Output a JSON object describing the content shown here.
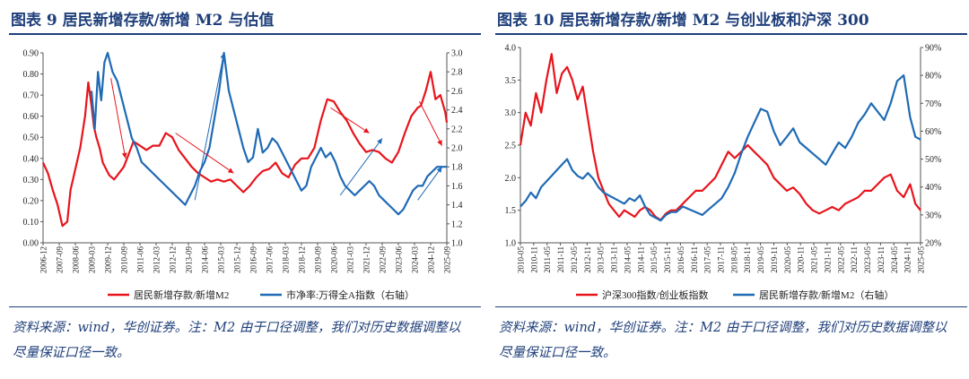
{
  "panels": [
    {
      "title": "图表 9   居民新增存款/新增 M2 与估值",
      "source": "资料来源：wind，华创证券。注：M2 由于口径调整，我们对历史数据调整以尽量保证口径一致。"
    },
    {
      "title": "图表 10   居民新增存款/新增 M2 与创业板和沪深 300",
      "source": "资料来源：wind，华创证券。注：M2 由于口径调整，我们对历史数据调整以尽量保证口径一致。"
    }
  ],
  "chart_data": [
    {
      "type": "line",
      "xlabels": [
        "2006-12",
        "2007-09",
        "2008-06",
        "2009-03",
        "2009-12",
        "2010-09",
        "2011-06",
        "2012-03",
        "2012-12",
        "2013-09",
        "2014-06",
        "2015-03",
        "2015-12",
        "2016-09",
        "2017-06",
        "2018-03",
        "2018-12",
        "2019-09",
        "2020-06",
        "2021-03",
        "2021-12",
        "2022-09",
        "2023-06",
        "2024-03",
        "2024-12",
        "2025-09"
      ],
      "x_range": [
        0,
        25
      ],
      "ylim_left": [
        0,
        0.9
      ],
      "yticks_left": [
        "0.00",
        "0.10",
        "0.20",
        "0.30",
        "0.40",
        "0.50",
        "0.60",
        "0.70",
        "0.80",
        "0.90"
      ],
      "ylim_right": [
        1.0,
        3.0
      ],
      "yticks_right": [
        "1.0",
        "1.2",
        "1.4",
        "1.6",
        "1.8",
        "2.0",
        "2.2",
        "2.4",
        "2.6",
        "2.8",
        "3.0"
      ],
      "series": [
        {
          "name": "居民新增存款/新增M2",
          "axis": "left",
          "color": "#e8141c",
          "x": [
            0,
            0.3,
            0.6,
            0.9,
            1.2,
            1.5,
            1.7,
            2.0,
            2.3,
            2.6,
            2.8,
            3.0,
            3.15,
            3.3,
            3.5,
            3.7,
            3.9,
            4.1,
            4.4,
            4.7,
            5.0,
            5.3,
            5.6,
            6.0,
            6.4,
            6.8,
            7.2,
            7.6,
            8.0,
            8.4,
            8.8,
            9.2,
            9.6,
            10.0,
            10.4,
            10.8,
            11.2,
            11.6,
            12.0,
            12.4,
            12.8,
            13.2,
            13.6,
            14.0,
            14.4,
            14.8,
            15.2,
            15.6,
            16.0,
            16.4,
            16.8,
            17.2,
            17.6,
            18.0,
            18.4,
            18.8,
            19.2,
            19.6,
            20.0,
            20.4,
            20.8,
            21.2,
            21.6,
            22.0,
            22.4,
            22.8,
            23.2,
            23.4,
            23.7,
            24.0,
            24.3,
            24.6,
            24.9,
            25.0
          ],
          "values": [
            0.38,
            0.33,
            0.25,
            0.18,
            0.08,
            0.1,
            0.25,
            0.35,
            0.45,
            0.6,
            0.76,
            0.65,
            0.55,
            0.5,
            0.45,
            0.38,
            0.35,
            0.32,
            0.3,
            0.33,
            0.36,
            0.42,
            0.48,
            0.46,
            0.44,
            0.46,
            0.46,
            0.52,
            0.5,
            0.44,
            0.4,
            0.36,
            0.33,
            0.31,
            0.29,
            0.3,
            0.29,
            0.3,
            0.27,
            0.24,
            0.27,
            0.31,
            0.34,
            0.35,
            0.38,
            0.33,
            0.31,
            0.37,
            0.4,
            0.4,
            0.45,
            0.58,
            0.68,
            0.67,
            0.62,
            0.58,
            0.52,
            0.47,
            0.43,
            0.44,
            0.43,
            0.4,
            0.38,
            0.43,
            0.52,
            0.6,
            0.64,
            0.65,
            0.72,
            0.81,
            0.68,
            0.7,
            0.62,
            0.57
          ]
        },
        {
          "name": "市净率:万得全A指数（右轴）",
          "axis": "right",
          "color": "#1f6ab5",
          "x": [
            3.0,
            3.2,
            3.4,
            3.6,
            3.8,
            4.0,
            4.3,
            4.6,
            4.9,
            5.2,
            5.5,
            5.8,
            6.1,
            6.4,
            6.7,
            7.0,
            7.3,
            7.6,
            7.9,
            8.2,
            8.5,
            8.8,
            9.1,
            9.4,
            9.7,
            10.0,
            10.3,
            10.6,
            10.9,
            11.2,
            11.5,
            11.8,
            12.1,
            12.4,
            12.7,
            13.0,
            13.3,
            13.6,
            13.9,
            14.2,
            14.5,
            14.8,
            15.1,
            15.4,
            15.7,
            16.0,
            16.3,
            16.6,
            16.9,
            17.2,
            17.5,
            17.8,
            18.1,
            18.4,
            18.7,
            19.0,
            19.3,
            19.6,
            19.9,
            20.2,
            20.5,
            20.8,
            21.1,
            21.4,
            21.7,
            22.0,
            22.3,
            22.6,
            22.9,
            23.2,
            23.5,
            23.8,
            24.1,
            24.4,
            24.7,
            25.0
          ],
          "values": [
            2.6,
            2.2,
            2.8,
            2.5,
            2.9,
            3.0,
            2.8,
            2.7,
            2.5,
            2.3,
            2.1,
            2.0,
            1.85,
            1.8,
            1.75,
            1.7,
            1.65,
            1.6,
            1.55,
            1.5,
            1.45,
            1.4,
            1.5,
            1.6,
            1.75,
            1.85,
            2.0,
            2.3,
            2.6,
            3.0,
            2.6,
            2.4,
            2.2,
            2.0,
            1.85,
            1.9,
            2.2,
            1.95,
            2.0,
            2.1,
            2.05,
            1.95,
            1.85,
            1.75,
            1.65,
            1.55,
            1.6,
            1.8,
            1.9,
            2.0,
            1.9,
            1.95,
            1.85,
            1.7,
            1.6,
            1.55,
            1.5,
            1.55,
            1.6,
            1.65,
            1.6,
            1.5,
            1.45,
            1.4,
            1.35,
            1.3,
            1.35,
            1.45,
            1.55,
            1.6,
            1.6,
            1.7,
            1.75,
            1.8,
            1.8,
            1.8
          ]
        }
      ],
      "arrows_red": [
        [
          4.2,
          0.78,
          5.1,
          0.4
        ],
        [
          8.2,
          0.52,
          11.8,
          0.33
        ],
        [
          17.8,
          0.64,
          20.2,
          0.52
        ],
        [
          23.3,
          0.67,
          24.7,
          0.46
        ]
      ],
      "arrows_blue": [
        [
          9.4,
          1.45,
          11.2,
          3.0
        ],
        [
          18.4,
          1.5,
          21.0,
          2.1
        ],
        [
          23.2,
          1.45,
          24.7,
          1.8
        ]
      ]
    },
    {
      "type": "line",
      "xlabels": [
        "2010-05",
        "2010-11",
        "2011-05",
        "2011-11",
        "2012-05",
        "2012-11",
        "2013-05",
        "2013-11",
        "2014-05",
        "2014-11",
        "2015-05",
        "2015-11",
        "2016-05",
        "2016-11",
        "2017-05",
        "2017-11",
        "2018-05",
        "2018-11",
        "2019-05",
        "2019-11",
        "2020-05",
        "2020-11",
        "2021-05",
        "2021-11",
        "2022-05",
        "2022-11",
        "2023-05",
        "2023-11",
        "2024-05",
        "2024-11",
        "2025-05"
      ],
      "x_range": [
        0,
        30.8
      ],
      "ylim_left": [
        1.0,
        4.0
      ],
      "yticks_left": [
        "1.0",
        "1.5",
        "2.0",
        "2.5",
        "3.0",
        "3.5",
        "4.0"
      ],
      "ylim_right": [
        20,
        90
      ],
      "yticks_right": [
        "20%",
        "30%",
        "40%",
        "50%",
        "60%",
        "70%",
        "80%",
        "90%"
      ],
      "series": [
        {
          "name": "沪深300指数/创业板指数",
          "axis": "left",
          "color": "#e8141c",
          "x": [
            0,
            0.4,
            0.8,
            1.2,
            1.6,
            2.0,
            2.4,
            2.8,
            3.2,
            3.6,
            4.0,
            4.4,
            4.8,
            5.2,
            5.6,
            6.0,
            6.4,
            6.8,
            7.2,
            7.6,
            8.0,
            8.4,
            8.8,
            9.2,
            9.6,
            10.0,
            10.4,
            10.8,
            11.2,
            11.6,
            12.0,
            12.5,
            13.0,
            13.5,
            14.0,
            14.5,
            15.0,
            15.5,
            16.0,
            16.5,
            17.0,
            17.5,
            18.0,
            18.5,
            19.0,
            19.5,
            20.0,
            20.5,
            21.0,
            21.5,
            22.0,
            22.5,
            23.0,
            23.5,
            24.0,
            24.5,
            25.0,
            25.5,
            26.0,
            26.5,
            27.0,
            27.5,
            28.0,
            28.5,
            29.0,
            29.5,
            30.0,
            30.4,
            30.8
          ],
          "values": [
            2.5,
            3.0,
            2.8,
            3.3,
            3.0,
            3.5,
            3.9,
            3.3,
            3.6,
            3.7,
            3.5,
            3.2,
            3.4,
            2.9,
            2.4,
            2.0,
            1.8,
            1.6,
            1.5,
            1.4,
            1.5,
            1.45,
            1.4,
            1.5,
            1.55,
            1.5,
            1.4,
            1.35,
            1.45,
            1.5,
            1.5,
            1.6,
            1.7,
            1.8,
            1.8,
            1.9,
            2.0,
            2.2,
            2.4,
            2.3,
            2.4,
            2.5,
            2.4,
            2.3,
            2.2,
            2.0,
            1.9,
            1.8,
            1.85,
            1.75,
            1.6,
            1.5,
            1.45,
            1.5,
            1.55,
            1.5,
            1.6,
            1.65,
            1.7,
            1.8,
            1.8,
            1.9,
            2.0,
            2.05,
            1.8,
            1.7,
            1.9,
            1.6,
            1.5
          ]
        },
        {
          "name": "居民新增存款/新增M2（右轴）",
          "axis": "right",
          "color": "#1f6ab5",
          "x": [
            0,
            0.4,
            0.8,
            1.2,
            1.6,
            2.0,
            2.4,
            2.8,
            3.2,
            3.6,
            4.0,
            4.4,
            4.8,
            5.2,
            5.6,
            6.0,
            6.4,
            6.8,
            7.2,
            7.6,
            8.0,
            8.4,
            8.8,
            9.2,
            9.6,
            10.0,
            10.4,
            10.8,
            11.2,
            11.6,
            12.0,
            12.5,
            13.0,
            13.5,
            14.0,
            14.5,
            15.0,
            15.5,
            16.0,
            16.5,
            17.0,
            17.5,
            18.0,
            18.5,
            19.0,
            19.5,
            20.0,
            20.5,
            21.0,
            21.5,
            22.0,
            22.5,
            23.0,
            23.5,
            24.0,
            24.5,
            25.0,
            25.5,
            26.0,
            26.5,
            27.0,
            27.5,
            28.0,
            28.5,
            29.0,
            29.5,
            30.0,
            30.4,
            30.8
          ],
          "values": [
            33,
            35,
            38,
            36,
            40,
            42,
            44,
            46,
            48,
            50,
            46,
            44,
            43,
            45,
            43,
            40,
            38,
            37,
            36,
            35,
            34,
            36,
            35,
            37,
            33,
            30,
            29,
            28,
            30,
            31,
            31,
            33,
            32,
            31,
            30,
            32,
            34,
            36,
            40,
            45,
            52,
            58,
            63,
            68,
            67,
            60,
            55,
            58,
            61,
            56,
            54,
            52,
            50,
            48,
            52,
            56,
            54,
            58,
            63,
            66,
            70,
            67,
            64,
            70,
            78,
            80,
            65,
            58,
            57
          ]
        }
      ]
    }
  ],
  "legends": [
    [
      "居民新增存款/新增M2",
      "市净率:万得全A指数（右轴）"
    ],
    [
      "沪深300指数/创业板指数",
      "居民新增存款/新增M2（右轴）"
    ]
  ]
}
